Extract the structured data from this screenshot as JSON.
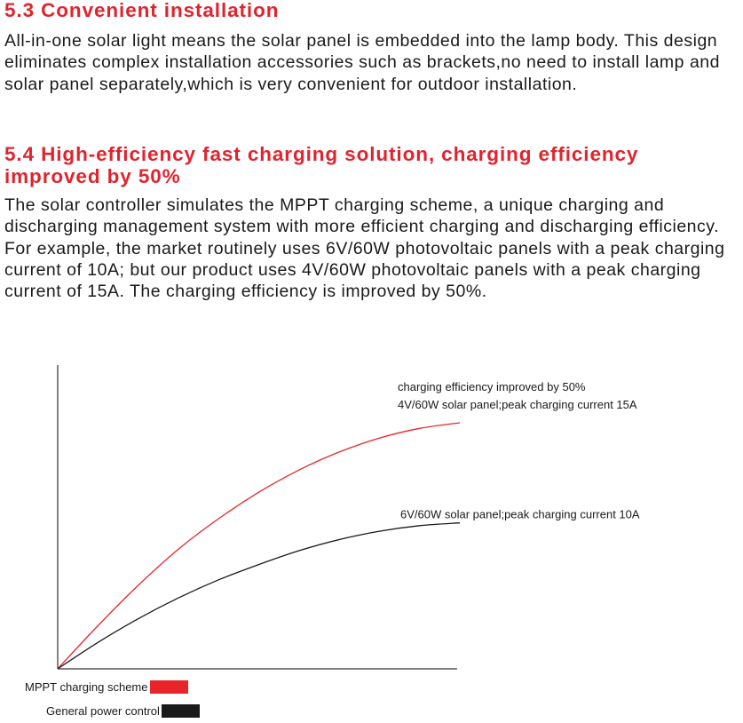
{
  "section_5_3": {
    "heading": "5.3 Convenient installation",
    "body": "All-in-one solar light means the solar panel is embedded into the lamp body. This design eliminates complex installation accessories such as brackets,no need to install lamp and solar panel separately,which is very convenient for outdoor installation."
  },
  "section_5_4": {
    "heading": "5.4 High-efficiency fast charging solution, charging efficiency improved by 50%",
    "body": "The solar controller simulates the MPPT charging scheme, a unique charging and discharging management system with more efficient charging and discharging efficiency. For example, the market routinely uses 6V/60W photovoltaic panels with a peak charging current of 10A; but our product uses 4V/60W photovoltaic panels with a peak charging current of 15A. The charging efficiency is improved by 50%."
  },
  "chart_data": {
    "type": "line",
    "title": "",
    "xlabel": "",
    "ylabel": "",
    "xlim": [
      0,
      1
    ],
    "ylim": [
      0,
      1
    ],
    "grid": false,
    "series": [
      {
        "name": "MPPT charging scheme",
        "color": "#e8252b",
        "annotation": [
          "charging efficiency improved by 50%",
          "4V/60W solar panel;peak charging current 15A"
        ],
        "x": [
          0,
          0.1,
          0.2,
          0.3,
          0.4,
          0.5,
          0.6,
          0.7,
          0.8,
          0.9,
          1.0
        ],
        "y": [
          0,
          0.155,
          0.3,
          0.43,
          0.54,
          0.635,
          0.715,
          0.78,
          0.83,
          0.865,
          0.885
        ]
      },
      {
        "name": "General power control",
        "color": "#1a1a1a",
        "annotation": [
          "6V/60W solar panel;peak charging current 10A"
        ],
        "x": [
          0,
          0.1,
          0.2,
          0.3,
          0.4,
          0.5,
          0.6,
          0.7,
          0.8,
          0.9,
          1.0
        ],
        "y": [
          0,
          0.095,
          0.18,
          0.255,
          0.32,
          0.375,
          0.425,
          0.465,
          0.495,
          0.515,
          0.525
        ]
      }
    ],
    "legend_placement": "bottom-left"
  }
}
